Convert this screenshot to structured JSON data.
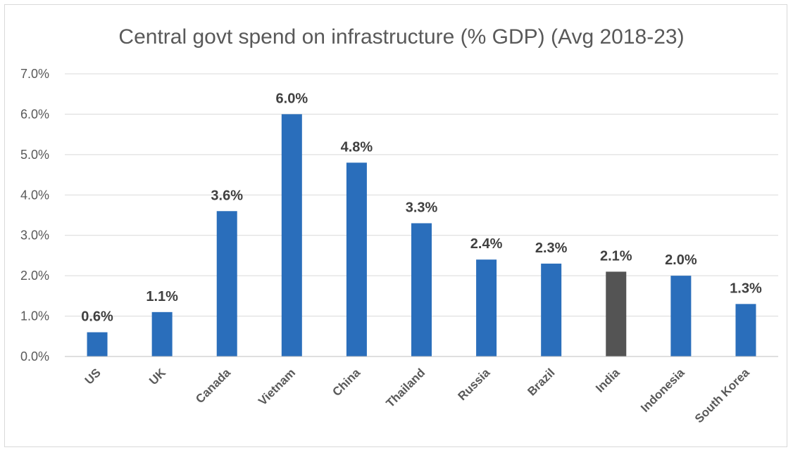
{
  "chart_data": {
    "type": "bar",
    "title": "Central govt spend on infrastructure (% GDP) (Avg 2018-23)",
    "xlabel": "",
    "ylabel": "",
    "categories": [
      "US",
      "UK",
      "Canada",
      "Vietnam",
      "China",
      "Thailand",
      "Russia",
      "Brazil",
      "India",
      "Indonesia",
      "South Korea"
    ],
    "values": [
      0.6,
      1.1,
      3.6,
      6.0,
      4.8,
      3.3,
      2.4,
      2.3,
      2.1,
      2.0,
      1.3
    ],
    "data_labels": [
      "0.6%",
      "1.1%",
      "3.6%",
      "6.0%",
      "4.8%",
      "3.3%",
      "2.4%",
      "2.3%",
      "2.1%",
      "2.0%",
      "1.3%"
    ],
    "yticks": [
      "0.0%",
      "1.0%",
      "2.0%",
      "3.0%",
      "4.0%",
      "5.0%",
      "6.0%",
      "7.0%"
    ],
    "ylim": [
      0,
      7
    ],
    "grid": true,
    "legend": "none",
    "colors": {
      "default_bar": "#2a6ebb",
      "highlight_bar": "#545454",
      "highlight_category": "India"
    }
  }
}
